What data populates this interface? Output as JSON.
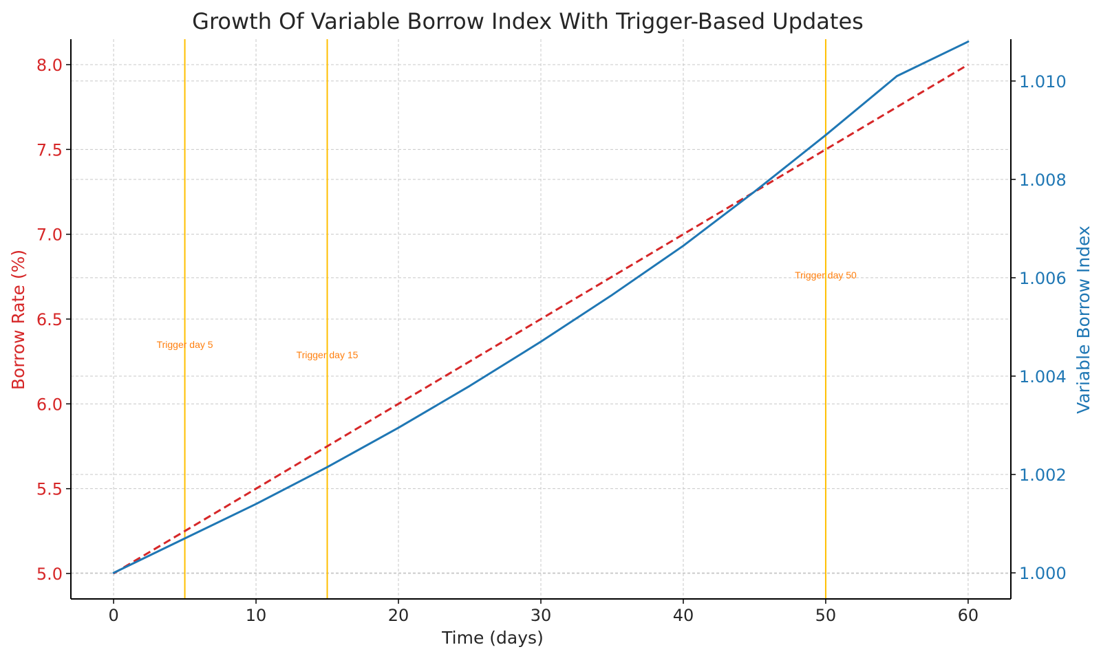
{
  "chart_data": {
    "type": "line",
    "title": "Growth Of Variable Borrow Index With Trigger-Based Updates",
    "xlabel": "Time (days)",
    "ylabel_left": "Borrow Rate (%)",
    "ylabel_right": "Variable Borrow Index",
    "xlim": [
      -3,
      63
    ],
    "ylim_left": [
      4.85,
      8.15
    ],
    "ylim_right": [
      0.99947,
      1.01085
    ],
    "x_ticks": [
      "0",
      "10",
      "20",
      "30",
      "40",
      "50",
      "60"
    ],
    "x_tick_values": [
      0,
      10,
      20,
      30,
      40,
      50,
      60
    ],
    "y_left_ticks": [
      "5.0",
      "5.5",
      "6.0",
      "6.5",
      "7.0",
      "7.5",
      "8.0"
    ],
    "y_left_tick_values": [
      5.0,
      5.5,
      6.0,
      6.5,
      7.0,
      7.5,
      8.0
    ],
    "y_right_ticks": [
      "1.000",
      "1.002",
      "1.004",
      "1.006",
      "1.008",
      "1.010"
    ],
    "y_right_tick_values": [
      1.0,
      1.002,
      1.004,
      1.006,
      1.008,
      1.01
    ],
    "grid": true,
    "series": [
      {
        "axis": "left",
        "style": "dashed",
        "color": "#d62728",
        "x": [
          0,
          60
        ],
        "values": [
          5.0,
          8.0
        ]
      },
      {
        "axis": "right",
        "style": "solid",
        "color": "#1f77b4",
        "x": [
          0,
          5,
          10,
          15,
          20,
          25,
          30,
          35,
          40,
          45,
          50,
          55,
          60
        ],
        "values": [
          1.0,
          1.0007,
          1.0014,
          1.00215,
          1.00295,
          1.0038,
          1.0047,
          1.00565,
          1.00665,
          1.00775,
          1.0089,
          1.0101,
          1.0108
        ]
      }
    ],
    "triggers": [
      {
        "day": 5,
        "label": "Trigger day 5",
        "label_y": 6.35
      },
      {
        "day": 15,
        "label": "Trigger day 15",
        "label_y": 6.29
      },
      {
        "day": 50,
        "label": "Trigger day 50",
        "label_y": 6.76
      }
    ],
    "trigger_color": "#ffbf00",
    "left_color": "#d62728",
    "right_color": "#1f77b4"
  }
}
